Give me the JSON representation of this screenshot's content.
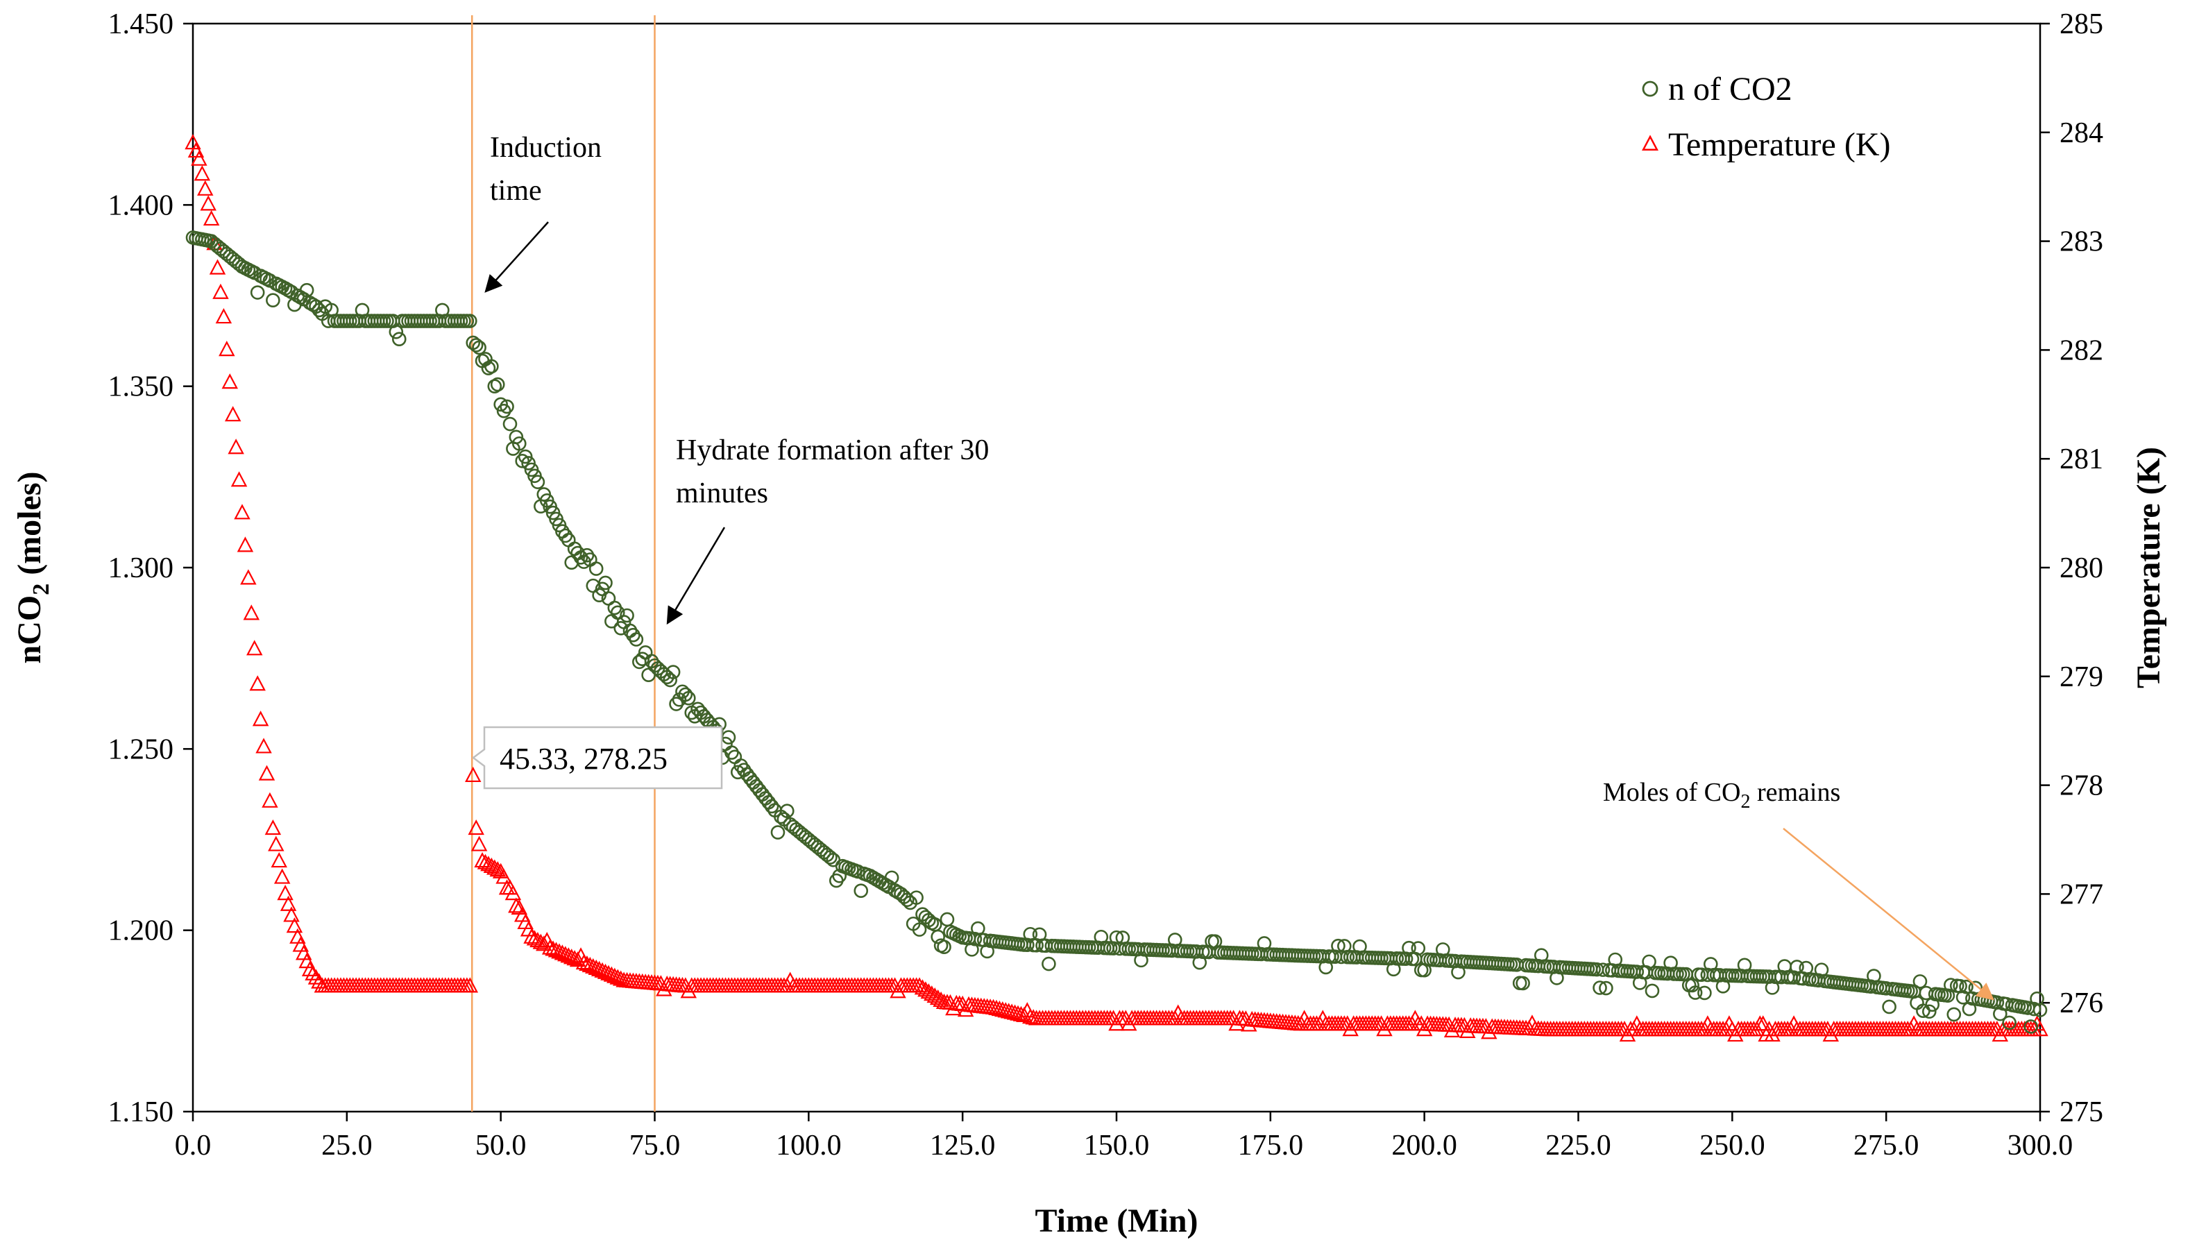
{
  "chart_data": {
    "type": "scatter",
    "x_axis": {
      "label": "Time (Min)",
      "min": 0,
      "max": 300,
      "ticks": [
        "0.0",
        "25.0",
        "50.0",
        "75.0",
        "100.0",
        "125.0",
        "150.0",
        "175.0",
        "200.0",
        "225.0",
        "250.0",
        "275.0",
        "300.0"
      ]
    },
    "y_left": {
      "label_main": "nCO",
      "label_sub": "2",
      "label_suffix": " (moles)",
      "min": 1.15,
      "max": 1.45,
      "ticks": [
        "1.150",
        "1.200",
        "1.250",
        "1.300",
        "1.350",
        "1.400",
        "1.450"
      ]
    },
    "y_right": {
      "label": "Temperature (K)",
      "min": 275,
      "max": 285,
      "ticks": [
        "275",
        "276",
        "277",
        "278",
        "279",
        "280",
        "281",
        "282",
        "283",
        "284",
        "285"
      ]
    },
    "series": [
      {
        "name": "n of CO2",
        "axis": "left",
        "marker": "circle",
        "color": "#3f6129",
        "breakpoints": [
          [
            0,
            1.391
          ],
          [
            3,
            1.39
          ],
          [
            8,
            1.383
          ],
          [
            15,
            1.377
          ],
          [
            20,
            1.372
          ],
          [
            22,
            1.368
          ],
          [
            45,
            1.368
          ],
          [
            45.5,
            1.362
          ],
          [
            47,
            1.36
          ],
          [
            50,
            1.345
          ],
          [
            55,
            1.327
          ],
          [
            60,
            1.31
          ],
          [
            65,
            1.298
          ],
          [
            70,
            1.285
          ],
          [
            75,
            1.273
          ],
          [
            80,
            1.265
          ],
          [
            85,
            1.255
          ],
          [
            90,
            1.243
          ],
          [
            95,
            1.232
          ],
          [
            100,
            1.225
          ],
          [
            105,
            1.218
          ],
          [
            110,
            1.215
          ],
          [
            115,
            1.21
          ],
          [
            120,
            1.202
          ],
          [
            125,
            1.198
          ],
          [
            135,
            1.196
          ],
          [
            150,
            1.195
          ],
          [
            180,
            1.193
          ],
          [
            200,
            1.192
          ],
          [
            220,
            1.19
          ],
          [
            240,
            1.188
          ],
          [
            260,
            1.187
          ],
          [
            270,
            1.185
          ],
          [
            290,
            1.181
          ],
          [
            300,
            1.178
          ]
        ]
      },
      {
        "name": "Temperature (K)",
        "axis": "right",
        "marker": "triangle",
        "color": "#ff0000",
        "breakpoints": [
          [
            0,
            283.9
          ],
          [
            1,
            283.75
          ],
          [
            3,
            283.2
          ],
          [
            5,
            282.3
          ],
          [
            7,
            281.1
          ],
          [
            9,
            279.9
          ],
          [
            11,
            278.6
          ],
          [
            13,
            277.6
          ],
          [
            15,
            277
          ],
          [
            17,
            276.6
          ],
          [
            19,
            276.3
          ],
          [
            21,
            276.15
          ],
          [
            45,
            276.15
          ],
          [
            45.33,
            278.25
          ],
          [
            46,
            277.6
          ],
          [
            47,
            277.3
          ],
          [
            50,
            277.2
          ],
          [
            52,
            277
          ],
          [
            55,
            276.6
          ],
          [
            58,
            276.5
          ],
          [
            62,
            276.4
          ],
          [
            66,
            276.3
          ],
          [
            70,
            276.2
          ],
          [
            80,
            276.15
          ],
          [
            100,
            276.15
          ],
          [
            118,
            276.15
          ],
          [
            122,
            276.0
          ],
          [
            130,
            275.95
          ],
          [
            137,
            275.85
          ],
          [
            150,
            275.85
          ],
          [
            170,
            275.85
          ],
          [
            180,
            275.8
          ],
          [
            200,
            275.8
          ],
          [
            220,
            275.75
          ],
          [
            250,
            275.75
          ],
          [
            300,
            275.75
          ]
        ]
      }
    ],
    "vertical_lines": [
      45.33,
      75
    ],
    "annotations": {
      "induction": [
        "Induction",
        "time"
      ],
      "hydrate": [
        "Hydrate formation after 30",
        "minutes"
      ],
      "remains_prefix": "Moles of CO",
      "remains_sub": "2",
      "remains_suffix": " remains",
      "callout": "45.33, 278.25"
    },
    "legend": [
      {
        "label": "n of CO2",
        "marker": "circle",
        "color": "#3f6129"
      },
      {
        "label": "Temperature (K)",
        "marker": "triangle",
        "color": "#ff0000"
      }
    ],
    "legend_position": "top-right"
  }
}
